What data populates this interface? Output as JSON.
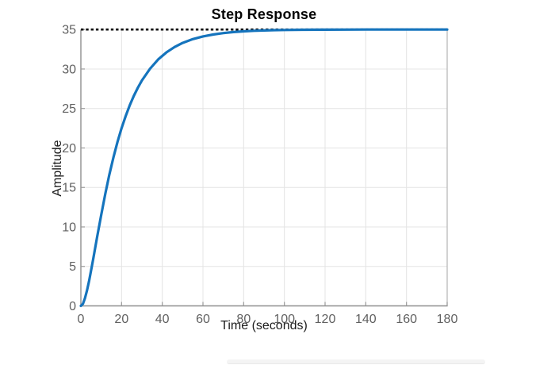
{
  "chart_data": {
    "type": "line",
    "title": "Step Response",
    "xlabel": "Time (seconds)",
    "ylabel": "Amplitude",
    "xlim": [
      0,
      180
    ],
    "ylim": [
      0,
      35
    ],
    "x_ticks": [
      0,
      20,
      40,
      60,
      80,
      100,
      120,
      140,
      160,
      180
    ],
    "y_ticks": [
      0,
      5,
      10,
      15,
      20,
      25,
      30,
      35
    ],
    "grid": true,
    "legend": "none",
    "steady_state_value": 35,
    "series": [
      {
        "name": "step-response-curve",
        "color": "#1574bd",
        "line_width": 3.2,
        "style": "solid",
        "x": [
          0,
          1,
          2,
          3,
          4,
          5,
          6,
          8,
          10,
          12,
          14,
          16,
          18,
          20,
          22,
          24,
          26,
          28,
          30,
          34,
          38,
          42,
          46,
          50,
          55,
          60,
          65,
          70,
          75,
          80,
          85,
          90,
          95,
          100,
          110,
          120,
          130,
          140,
          150,
          160,
          170,
          180
        ],
        "y": [
          0,
          0.26,
          0.95,
          1.94,
          3.13,
          4.45,
          5.85,
          8.73,
          11.54,
          14.19,
          16.62,
          18.81,
          20.77,
          22.5,
          24.04,
          25.39,
          26.58,
          27.63,
          28.55,
          30.05,
          31.21,
          32.1,
          32.78,
          33.3,
          33.78,
          34.13,
          34.37,
          34.55,
          34.68,
          34.77,
          34.84,
          34.88,
          34.92,
          34.94,
          34.97,
          34.98,
          34.99,
          35,
          35,
          35,
          35,
          35
        ]
      },
      {
        "name": "steady-state-line",
        "color": "#0b0b0b",
        "line_width": 2.6,
        "style": "dotted",
        "x": [
          0,
          180
        ],
        "y": [
          35,
          35
        ]
      }
    ]
  },
  "colors": {
    "background": "#ffffff",
    "grid": "#e4e4e4",
    "axis": "#8f8f8f",
    "box_right": "#b5b5b5",
    "tick_mark": "#9a9a9a",
    "tick_label": "#606060",
    "axis_label": "#1c1c1c",
    "title": "#050505",
    "curve_blue": "#1574bd",
    "dashed_black": "#0b0b0b"
  }
}
